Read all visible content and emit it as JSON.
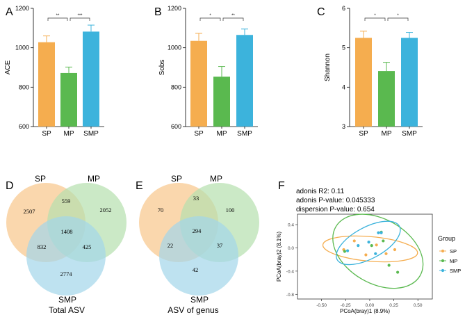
{
  "colors": {
    "SP": "#f5ad4f",
    "MP": "#5ab94f",
    "SMP": "#3cb3dc",
    "venn_SP": "#f9cd99",
    "venn_MP": "#b5dfae",
    "venn_SMP": "#a3d6ea"
  },
  "chart_data": [
    {
      "panel": "A",
      "type": "bar",
      "ylabel": "ACE",
      "categories": [
        "SP",
        "MP",
        "SMP"
      ],
      "values": [
        1028,
        872,
        1082
      ],
      "errors": [
        32,
        30,
        33
      ],
      "ylim": [
        600,
        1200
      ],
      "yticks": [
        "600",
        "800",
        "1000",
        "1200"
      ],
      "significance": [
        {
          "pair": [
            0,
            1
          ],
          "label": "**"
        },
        {
          "pair": [
            1,
            2
          ],
          "label": "***"
        }
      ]
    },
    {
      "panel": "B",
      "type": "bar",
      "ylabel": "Sobs",
      "categories": [
        "SP",
        "MP",
        "SMP"
      ],
      "values": [
        1035,
        853,
        1065
      ],
      "errors": [
        38,
        52,
        30
      ],
      "ylim": [
        600,
        1200
      ],
      "yticks": [
        "600",
        "800",
        "1000",
        "1200"
      ],
      "significance": [
        {
          "pair": [
            0,
            1
          ],
          "label": "*"
        },
        {
          "pair": [
            1,
            2
          ],
          "label": "**"
        }
      ]
    },
    {
      "panel": "C",
      "type": "bar",
      "ylabel": "Shannon",
      "categories": [
        "SP",
        "MP",
        "SMP"
      ],
      "values": [
        5.25,
        4.41,
        5.25
      ],
      "errors": [
        0.17,
        0.22,
        0.14
      ],
      "ylim": [
        3,
        6
      ],
      "yticks": [
        "3",
        "4",
        "5",
        "6"
      ],
      "significance": [
        {
          "pair": [
            0,
            1
          ],
          "label": "*"
        },
        {
          "pair": [
            1,
            2
          ],
          "label": "*"
        }
      ]
    },
    {
      "panel": "D",
      "type": "venn",
      "caption": "Total ASV",
      "sets": [
        "SP",
        "MP",
        "SMP"
      ],
      "regions": {
        "SP_only": "2507",
        "MP_only": "2052",
        "SMP_only": "2774",
        "SP_MP": "559",
        "SP_SMP": "832",
        "MP_SMP": "425",
        "all": "1408"
      }
    },
    {
      "panel": "E",
      "type": "venn",
      "caption": "ASV of genus",
      "sets": [
        "SP",
        "MP",
        "SMP"
      ],
      "regions": {
        "SP_only": "70",
        "MP_only": "100",
        "SMP_only": "42",
        "SP_MP": "33",
        "SP_SMP": "22",
        "MP_SMP": "37",
        "all": "294"
      }
    },
    {
      "panel": "F",
      "type": "scatter",
      "xlabel": "PCoA(bray)1 (8.9%)",
      "ylabel": "PCoA(bray)2 (8.1%)",
      "xlim": [
        -0.75,
        0.65
      ],
      "ylim": [
        -0.88,
        0.58
      ],
      "xticks": [
        "-0.50",
        "-0.25",
        "0.00",
        "0.25",
        "0.50"
      ],
      "yticks": [
        "-0.8",
        "-0.4",
        "0.0",
        "0.4"
      ],
      "stats": [
        "adonis R2: 0.11",
        "adonis P-value: 0.045333",
        "dispersion P-value: 0.654"
      ],
      "legend_title": "Group",
      "series": [
        {
          "name": "SP",
          "points": [
            [
              -0.16,
              0.12
            ],
            [
              -0.04,
              -0.12
            ],
            [
              0.07,
              0.05
            ],
            [
              0.17,
              -0.1
            ],
            [
              0.26,
              -0.03
            ],
            [
              -0.27,
              -0.03
            ]
          ]
        },
        {
          "name": "MP",
          "points": [
            [
              0.02,
              0.04
            ],
            [
              0.14,
              0.12
            ],
            [
              0.2,
              -0.3
            ],
            [
              0.29,
              -0.42
            ],
            [
              -0.26,
              -0.06
            ],
            [
              0.12,
              0.27
            ]
          ]
        },
        {
          "name": "SMP",
          "points": [
            [
              -0.23,
              -0.05
            ],
            [
              0.09,
              0.26
            ],
            [
              0.12,
              0.26
            ],
            [
              -0.12,
              0.04
            ],
            [
              -0.01,
              0.1
            ],
            [
              0.06,
              -0.1
            ]
          ]
        }
      ]
    }
  ]
}
